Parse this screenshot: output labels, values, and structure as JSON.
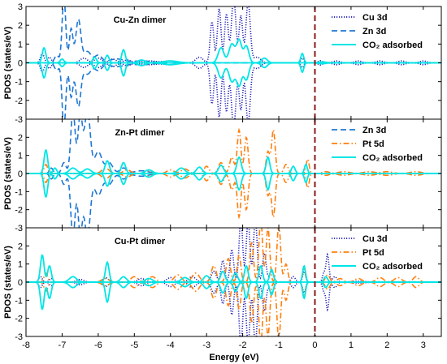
{
  "chart_data": {
    "type": "line",
    "xlabel": "Energy (eV)",
    "xlim": [
      -8,
      3.5
    ],
    "x_ticks": [
      -8,
      -7,
      -6,
      -5,
      -4,
      -3,
      -2,
      -1,
      0,
      1,
      2,
      3
    ],
    "fermi_level": 0,
    "fermi_color": "#8b1a1a",
    "panels": [
      {
        "title": "Cu-Zn dimer",
        "ylabel": "PDOS (states/eV)",
        "ylim": [
          -3,
          3
        ],
        "y_ticks": [
          -3,
          -2,
          -1,
          0,
          1,
          2,
          3
        ],
        "legend_position": "top-right",
        "series": [
          {
            "name": "Cu 3d",
            "color": "#1f1fb4",
            "style": "dotted",
            "peaks": [
              [
                -7.55,
                0.5,
                0.05
              ],
              [
                -7.35,
                0.3,
                0.05
              ],
              [
                -6.4,
                0.25,
                0.1
              ],
              [
                -6.0,
                0.25,
                0.1
              ],
              [
                -5.6,
                0.2,
                0.1
              ],
              [
                -5.2,
                0.15,
                0.1
              ],
              [
                -4.6,
                0.1,
                0.2
              ],
              [
                -4.0,
                0.1,
                0.2
              ],
              [
                -3.2,
                0.3,
                0.1
              ],
              [
                -2.85,
                2.2,
                0.05
              ],
              [
                -2.65,
                2.9,
                0.05
              ],
              [
                -2.45,
                2.6,
                0.05
              ],
              [
                -2.25,
                3.5,
                0.06
              ],
              [
                -2.05,
                2.5,
                0.05
              ],
              [
                -1.85,
                3.2,
                0.06
              ],
              [
                -1.6,
                0.3,
                0.1
              ],
              [
                -0.35,
                0.25,
                0.04
              ],
              [
                0.15,
                0.12,
                0.06
              ],
              [
                0.6,
                0.1,
                0.1
              ],
              [
                1.2,
                0.1,
                0.1
              ],
              [
                1.8,
                0.1,
                0.1
              ],
              [
                2.4,
                0.1,
                0.1
              ],
              [
                3.0,
                0.1,
                0.1
              ]
            ]
          },
          {
            "name": "Zn 3d",
            "color": "#1f77d4",
            "style": "dashed",
            "peaks": [
              [
                -7.15,
                0.4,
                0.06
              ],
              [
                -6.95,
                3.5,
                0.05
              ],
              [
                -6.75,
                1.8,
                0.05
              ],
              [
                -6.55,
                2.3,
                0.07
              ],
              [
                -6.3,
                0.6,
                0.1
              ],
              [
                -6.0,
                0.4,
                0.1
              ],
              [
                -5.5,
                0.2,
                0.2
              ],
              [
                -4.8,
                0.1,
                0.3
              ]
            ]
          },
          {
            "name": "CO₂ adsorbed",
            "color": "#00e5e5",
            "style": "solid",
            "peaks": [
              [
                -7.5,
                0.8,
                0.05
              ],
              [
                -7.0,
                0.2,
                0.05
              ],
              [
                -6.1,
                0.3,
                0.05
              ],
              [
                -5.75,
                0.4,
                0.05
              ],
              [
                -5.3,
                0.7,
                0.05
              ],
              [
                -4.8,
                0.15,
                0.1
              ],
              [
                -4.0,
                0.1,
                0.2
              ],
              [
                -2.6,
                0.8,
                0.08
              ],
              [
                -2.3,
                1.0,
                0.08
              ],
              [
                -2.1,
                1.2,
                0.07
              ],
              [
                -1.9,
                0.9,
                0.07
              ],
              [
                -1.4,
                0.25,
                0.08
              ],
              [
                -0.35,
                0.5,
                0.04
              ],
              [
                0.2,
                0.05,
                0.1
              ]
            ]
          }
        ]
      },
      {
        "title": "Zn-Pt dimer",
        "ylabel": "PDOS (states/eV)",
        "ylim": [
          -3,
          3
        ],
        "y_ticks": [
          -3,
          -2,
          -1,
          0,
          1,
          2,
          3
        ],
        "legend_position": "top-right",
        "series": [
          {
            "name": "Zn 3d",
            "color": "#1f77d4",
            "style": "dashed",
            "peaks": [
              [
                -7.3,
                0.3,
                0.05
              ],
              [
                -6.95,
                0.6,
                0.06
              ],
              [
                -6.7,
                3.5,
                0.06
              ],
              [
                -6.5,
                3.2,
                0.06
              ],
              [
                -6.3,
                3.5,
                0.08
              ],
              [
                -6.0,
                1.2,
                0.1
              ],
              [
                -5.7,
                0.6,
                0.1
              ],
              [
                -5.3,
                0.3,
                0.1
              ],
              [
                -4.8,
                0.15,
                0.2
              ]
            ]
          },
          {
            "name": "Pt 5d",
            "color": "#ff7f0e",
            "style": "dashdot",
            "peaks": [
              [
                -7.45,
                0.5,
                0.05
              ],
              [
                -5.8,
                0.3,
                0.1
              ],
              [
                -5.2,
                0.2,
                0.1
              ],
              [
                -4.6,
                0.15,
                0.1
              ],
              [
                -4.0,
                0.2,
                0.1
              ],
              [
                -3.6,
                0.25,
                0.1
              ],
              [
                -3.0,
                0.4,
                0.07
              ],
              [
                -2.6,
                0.6,
                0.07
              ],
              [
                -2.3,
                0.9,
                0.06
              ],
              [
                -2.1,
                2.4,
                0.05
              ],
              [
                -1.9,
                2.0,
                0.05
              ],
              [
                -1.3,
                1.2,
                0.05
              ],
              [
                -1.15,
                2.4,
                0.05
              ],
              [
                -0.8,
                0.5,
                0.06
              ],
              [
                -0.2,
                0.8,
                0.04
              ],
              [
                0.3,
                0.1,
                0.1
              ],
              [
                0.8,
                0.1,
                0.15
              ],
              [
                1.5,
                0.1,
                0.15
              ],
              [
                2.0,
                0.1,
                0.15
              ],
              [
                2.8,
                0.1,
                0.15
              ]
            ]
          },
          {
            "name": "CO₂ adsorbed",
            "color": "#00e5e5",
            "style": "solid",
            "peaks": [
              [
                -7.45,
                1.3,
                0.05
              ],
              [
                -7.2,
                0.3,
                0.05
              ],
              [
                -6.7,
                0.3,
                0.1
              ],
              [
                -6.3,
                0.25,
                0.1
              ],
              [
                -5.75,
                0.7,
                0.06
              ],
              [
                -5.3,
                0.6,
                0.06
              ],
              [
                -4.6,
                0.2,
                0.1
              ],
              [
                -3.7,
                0.3,
                0.1
              ],
              [
                -3.2,
                0.35,
                0.08
              ],
              [
                -2.6,
                0.45,
                0.07
              ],
              [
                -2.1,
                0.9,
                0.06
              ],
              [
                -1.3,
                0.9,
                0.05
              ],
              [
                -0.6,
                0.4,
                0.05
              ],
              [
                -0.25,
                0.5,
                0.04
              ]
            ]
          }
        ]
      },
      {
        "title": "Cu-Pt dimer",
        "ylabel": "PDOS (states/eV)",
        "ylim": [
          -3,
          3
        ],
        "y_ticks": [
          -3,
          -2,
          -1,
          0,
          1,
          2,
          3
        ],
        "legend_position": "top-right",
        "series": [
          {
            "name": "Cu 3d",
            "color": "#1f1fb4",
            "style": "dotted",
            "peaks": [
              [
                -7.6,
                0.3,
                0.05
              ],
              [
                -7.3,
                0.2,
                0.05
              ],
              [
                -6.5,
                0.15,
                0.1
              ],
              [
                -5.8,
                0.25,
                0.08
              ],
              [
                -4.8,
                0.2,
                0.1
              ],
              [
                -4.0,
                0.25,
                0.1
              ],
              [
                -3.4,
                0.3,
                0.1
              ],
              [
                -2.8,
                0.6,
                0.07
              ],
              [
                -2.55,
                1.2,
                0.05
              ],
              [
                -2.3,
                1.8,
                0.05
              ],
              [
                -2.05,
                3.5,
                0.05
              ],
              [
                -1.85,
                3.4,
                0.05
              ],
              [
                -1.65,
                3.5,
                0.05
              ],
              [
                -1.4,
                1.6,
                0.05
              ],
              [
                -1.2,
                0.6,
                0.06
              ],
              [
                -0.6,
                0.3,
                0.06
              ],
              [
                -0.3,
                0.6,
                0.04
              ],
              [
                0.25,
                0.5,
                0.04
              ],
              [
                0.35,
                1.5,
                0.04
              ],
              [
                0.55,
                0.3,
                0.06
              ],
              [
                1.2,
                0.05,
                0.2
              ]
            ]
          },
          {
            "name": "Pt 5d",
            "color": "#ff7f0e",
            "style": "dashdot",
            "peaks": [
              [
                -7.45,
                0.5,
                0.05
              ],
              [
                -5.8,
                0.2,
                0.1
              ],
              [
                -5.0,
                0.3,
                0.1
              ],
              [
                -4.5,
                0.3,
                0.1
              ],
              [
                -3.8,
                0.4,
                0.1
              ],
              [
                -3.3,
                0.5,
                0.1
              ],
              [
                -2.8,
                0.9,
                0.07
              ],
              [
                -2.4,
                1.3,
                0.06
              ],
              [
                -2.1,
                1.5,
                0.05
              ],
              [
                -1.75,
                2.2,
                0.05
              ],
              [
                -1.5,
                3.5,
                0.05
              ],
              [
                -1.3,
                3.0,
                0.05
              ],
              [
                -1.0,
                3.2,
                0.05
              ],
              [
                -0.8,
                1.0,
                0.05
              ],
              [
                -0.3,
                0.7,
                0.04
              ],
              [
                0.35,
                0.4,
                0.06
              ],
              [
                0.7,
                0.2,
                0.08
              ],
              [
                1.2,
                0.2,
                0.1
              ],
              [
                1.8,
                0.25,
                0.1
              ],
              [
                2.3,
                0.25,
                0.1
              ],
              [
                2.8,
                0.3,
                0.08
              ]
            ]
          },
          {
            "name": "CO₂ adsorbed",
            "color": "#00e5e5",
            "style": "solid",
            "peaks": [
              [
                -7.55,
                1.5,
                0.05
              ],
              [
                -7.35,
                0.9,
                0.05
              ],
              [
                -6.7,
                0.3,
                0.1
              ],
              [
                -5.75,
                1.1,
                0.05
              ],
              [
                -5.3,
                0.3,
                0.08
              ],
              [
                -4.6,
                0.2,
                0.1
              ],
              [
                -3.6,
                0.25,
                0.1
              ],
              [
                -3.0,
                0.35,
                0.08
              ],
              [
                -2.55,
                0.6,
                0.06
              ],
              [
                -2.2,
                0.5,
                0.06
              ],
              [
                -1.9,
                0.9,
                0.05
              ],
              [
                -1.5,
                0.9,
                0.05
              ],
              [
                -1.2,
                0.7,
                0.05
              ],
              [
                -0.3,
                0.9,
                0.04
              ],
              [
                0.3,
                0.3,
                0.05
              ]
            ]
          }
        ]
      }
    ]
  }
}
